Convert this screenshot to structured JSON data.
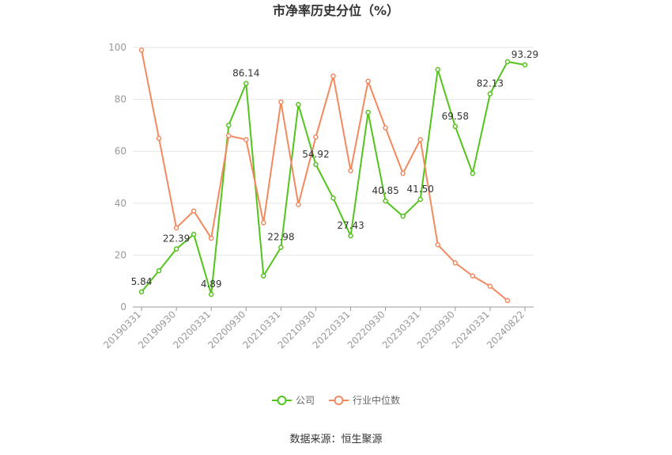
{
  "chart_data": {
    "type": "line",
    "title": "市净率历史分位（%）",
    "xlabel": "",
    "ylabel": "",
    "ylim": [
      0,
      100
    ],
    "yticks": [
      0,
      20,
      40,
      60,
      80,
      100
    ],
    "x": [
      "20190331",
      "20190630",
      "20190930",
      "20191231",
      "20200331",
      "20200630",
      "20200930",
      "20201231",
      "20210331",
      "20210630",
      "20210930",
      "20211231",
      "20220331",
      "20220630",
      "20220930",
      "20221231",
      "20230331",
      "20230630",
      "20230930",
      "20231231",
      "20240331",
      "20240630",
      "20240822"
    ],
    "xticks": [
      "20190331",
      "20190930",
      "20200331",
      "20200930",
      "20210331",
      "20210930",
      "20220331",
      "20220930",
      "20230331",
      "20230930",
      "20240331",
      "20240822"
    ],
    "series": [
      {
        "name": "公司",
        "color": "#52c41a",
        "values": [
          5.84,
          14,
          22.39,
          28,
          4.89,
          70,
          86.14,
          12,
          22.98,
          78,
          54.92,
          42,
          27.43,
          75,
          40.85,
          35,
          41.5,
          91.5,
          69.58,
          51.5,
          82.13,
          94.5,
          93.29
        ]
      },
      {
        "name": "行业中位数",
        "color": "#f4895f",
        "values": [
          99,
          65,
          30.5,
          37,
          26.5,
          66,
          64.5,
          32.5,
          79,
          39.5,
          65.5,
          89,
          52.5,
          87,
          69,
          51.5,
          64.5,
          24,
          17,
          12,
          8,
          2.5,
          null
        ]
      }
    ],
    "data_labels": [
      {
        "series": 0,
        "index": 0,
        "text": "5.84"
      },
      {
        "series": 0,
        "index": 2,
        "text": "22.39"
      },
      {
        "series": 0,
        "index": 4,
        "text": "4.89"
      },
      {
        "series": 0,
        "index": 6,
        "text": "86.14"
      },
      {
        "series": 0,
        "index": 8,
        "text": "22.98"
      },
      {
        "series": 0,
        "index": 10,
        "text": "54.92"
      },
      {
        "series": 0,
        "index": 12,
        "text": "27.43"
      },
      {
        "series": 0,
        "index": 14,
        "text": "40.85"
      },
      {
        "series": 0,
        "index": 16,
        "text": "41.50"
      },
      {
        "series": 0,
        "index": 18,
        "text": "69.58"
      },
      {
        "series": 0,
        "index": 20,
        "text": "82.13"
      },
      {
        "series": 0,
        "index": 22,
        "text": "93.29"
      }
    ],
    "legend": {
      "position": "bottom-center",
      "items": [
        "公司",
        "行业中位数"
      ]
    },
    "grid": true
  },
  "footer": {
    "source": "数据来源：恒生聚源"
  },
  "colors": {
    "grid": "#e6e6e6",
    "axis": "#999999"
  }
}
